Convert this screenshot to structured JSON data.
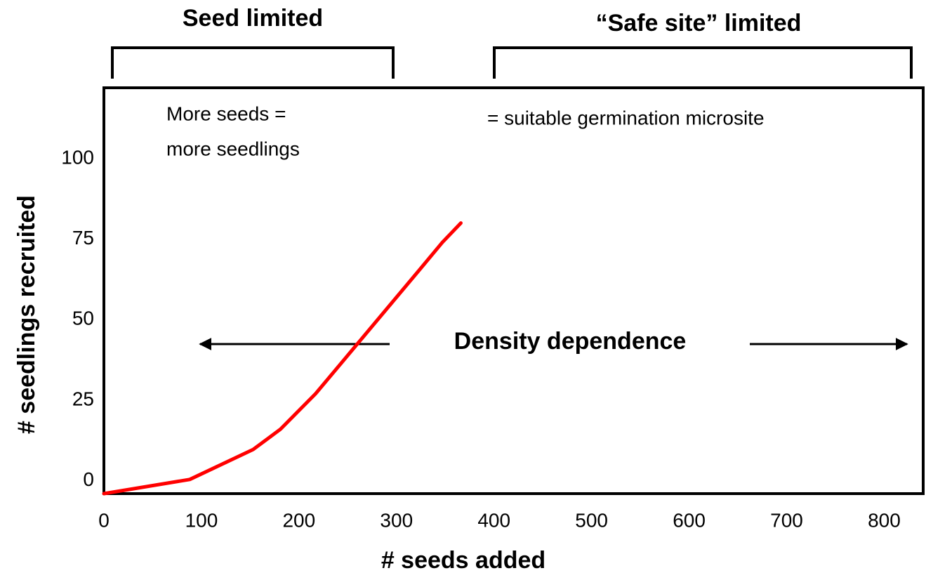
{
  "chart_data": {
    "type": "line",
    "xlabel": "# seeds added",
    "ylabel": "# seedlings recruited",
    "annotations": [
      "Seed limited",
      "“Safe site” limited",
      "More seeds =",
      "more seedlings",
      "= suitable germination microsite",
      "Density dependence"
    ],
    "x": [
      0,
      88,
      153,
      181,
      217,
      253,
      289,
      325,
      347,
      366
    ],
    "values": [
      -4,
      0.4,
      9.7,
      16,
      27,
      40,
      53,
      66,
      74,
      80
    ],
    "color": "#ff0000",
    "xlim": [
      0,
      840
    ],
    "xticks": [
      0,
      100,
      200,
      300,
      400,
      500,
      600,
      700,
      800
    ],
    "ylim": [
      -4,
      122
    ],
    "yticks": [
      0,
      25,
      50,
      75,
      100
    ],
    "grid": false
  }
}
